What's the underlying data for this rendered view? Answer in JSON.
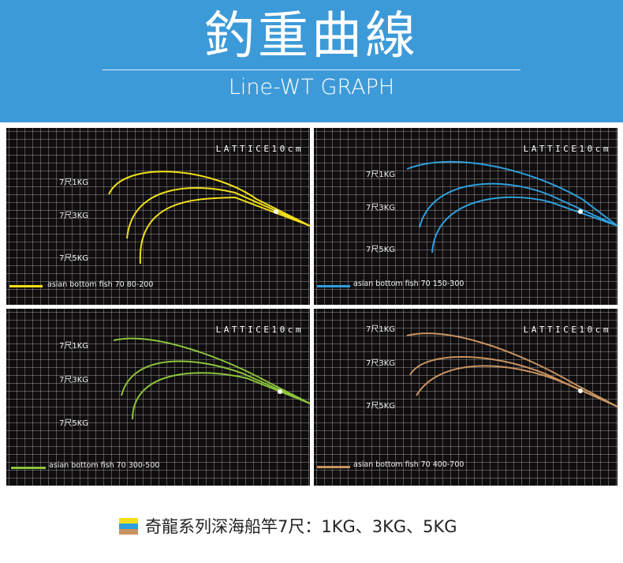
{
  "header": {
    "title": "釣重曲線",
    "subtitle": "Line-WT GRAPH",
    "background": "#3d9ad9"
  },
  "panels": [
    {
      "lattice": "LATTICE10cm",
      "weights": [
        "7尺1KG",
        "7尺3KG",
        "7尺5KG"
      ],
      "legend": "asian bottom fish 70 80-200",
      "color": "#f2df1a"
    },
    {
      "lattice": "LATTICE10cm",
      "weights": [
        "7尺1KG",
        "7尺3KG",
        "7尺5KG"
      ],
      "legend": "asian bottom fish 70 150-300",
      "color": "#2f9fdc"
    },
    {
      "lattice": "LATTICE10cm",
      "weights": [
        "7尺1KG",
        "7尺3KG",
        "7尺5KG"
      ],
      "legend": "asian bottom fish 70 300-500",
      "color": "#8cc43c"
    },
    {
      "lattice": "LATTICE10cm",
      "weights": [
        "7尺1KG",
        "7尺3KG",
        "7尺5KG"
      ],
      "legend": "asian bottom fish 70 400-700",
      "color": "#c99360"
    }
  ],
  "footer": {
    "text": "奇龍系列深海船竿7尺：1KG、3KG、5KG",
    "swatch_colors": [
      "#f2df1a",
      "#2f9fdc",
      "#c99360"
    ]
  }
}
